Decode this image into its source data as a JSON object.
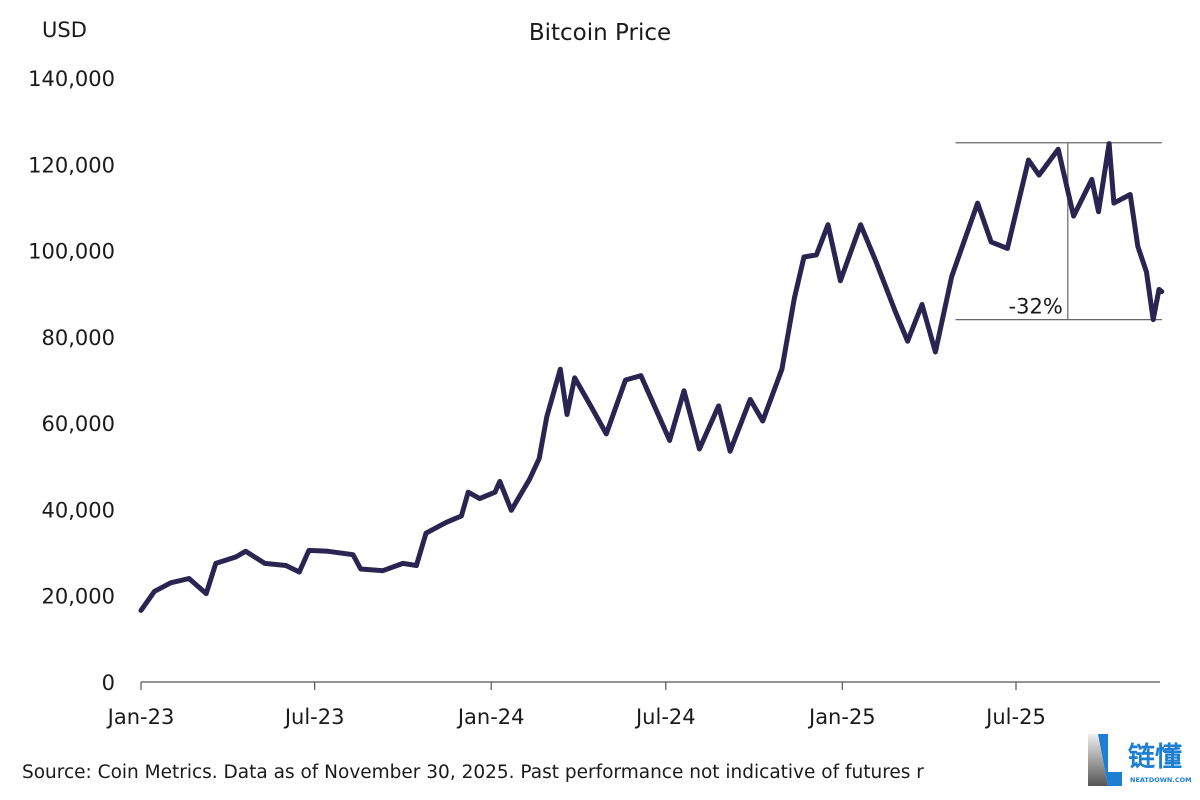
{
  "chart_data": {
    "type": "line",
    "title": "Bitcoin Price",
    "ylabel": "USD",
    "xlabel": "",
    "ylim": [
      0,
      140000
    ],
    "yticks": [
      0,
      20000,
      40000,
      60000,
      80000,
      100000,
      120000,
      140000
    ],
    "ytick_labels": [
      "0",
      "20,000",
      "40,000",
      "60,000",
      "80,000",
      "100,000",
      "120,000",
      "140,000"
    ],
    "xticks": [
      "2023-01-01",
      "2023-07-01",
      "2024-01-01",
      "2024-07-01",
      "2025-01-01",
      "2025-07-01"
    ],
    "xtick_labels": [
      "Jan-23",
      "Jul-23",
      "Jan-24",
      "Jul-24",
      "Jan-25",
      "Jul-25"
    ],
    "xlim": [
      "2023-01-01",
      "2025-11-30"
    ],
    "grid": false,
    "line_color": "#2a2550",
    "series": [
      {
        "x": [
          "2023-01-01",
          "2023-01-15",
          "2023-02-01",
          "2023-02-20",
          "2023-03-10",
          "2023-03-20",
          "2023-04-10",
          "2023-04-20",
          "2023-05-10",
          "2023-06-01",
          "2023-06-15",
          "2023-06-25",
          "2023-07-15",
          "2023-08-10",
          "2023-08-18",
          "2023-09-10",
          "2023-10-01",
          "2023-10-15",
          "2023-10-25",
          "2023-11-15",
          "2023-12-01",
          "2023-12-08",
          "2023-12-20",
          "2024-01-05",
          "2024-01-10",
          "2024-01-22",
          "2024-02-10",
          "2024-02-20",
          "2024-02-28",
          "2024-03-13",
          "2024-03-20",
          "2024-03-28",
          "2024-04-15",
          "2024-04-30",
          "2024-05-20",
          "2024-06-05",
          "2024-06-25",
          "2024-07-05",
          "2024-07-20",
          "2024-08-05",
          "2024-08-25",
          "2024-09-06",
          "2024-09-27",
          "2024-10-10",
          "2024-10-30",
          "2024-11-12",
          "2024-11-22",
          "2024-12-05",
          "2024-12-17",
          "2024-12-30",
          "2025-01-20",
          "2025-02-05",
          "2025-02-25",
          "2025-03-10",
          "2025-03-25",
          "2025-04-08",
          "2025-04-25",
          "2025-05-22",
          "2025-06-05",
          "2025-06-22",
          "2025-07-14",
          "2025-07-25",
          "2025-08-14",
          "2025-08-30",
          "2025-09-18",
          "2025-09-25",
          "2025-10-06",
          "2025-10-11",
          "2025-10-28",
          "2025-11-05",
          "2025-11-14",
          "2025-11-21",
          "2025-11-27",
          "2025-11-30"
        ],
        "y": [
          16600,
          21000,
          23000,
          24000,
          20500,
          27500,
          29000,
          30300,
          27500,
          27000,
          25500,
          30500,
          30300,
          29500,
          26200,
          25800,
          27500,
          27000,
          34500,
          37000,
          38500,
          44000,
          42500,
          44000,
          46500,
          39800,
          47000,
          51800,
          61500,
          72500,
          62000,
          70500,
          63500,
          57500,
          70000,
          71000,
          61000,
          56000,
          67500,
          54000,
          64000,
          53500,
          65500,
          60500,
          72500,
          89000,
          98500,
          99000,
          106000,
          93000,
          106000,
          97500,
          86000,
          79000,
          87500,
          76500,
          94000,
          111000,
          102000,
          100500,
          121000,
          117500,
          123500,
          108000,
          116500,
          109000,
          124800,
          111000,
          113000,
          101000,
          95000,
          84000,
          91000,
          90500
        ]
      }
    ],
    "annotations": [
      {
        "label": "-32%",
        "from_value": 125000,
        "to_value": 84000,
        "x_start": "2025-05-01",
        "x_end": "2025-11-30",
        "x_marker": "2025-08-24"
      }
    ]
  },
  "footer": {
    "source": "Source: Coin Metrics. Data as of November 30, 2025. Past performance not indicative of futures r"
  },
  "watermark": {
    "text_cn": "链懂",
    "text_en": "NEATDOWN.COM",
    "color": "#1e7fd0"
  }
}
